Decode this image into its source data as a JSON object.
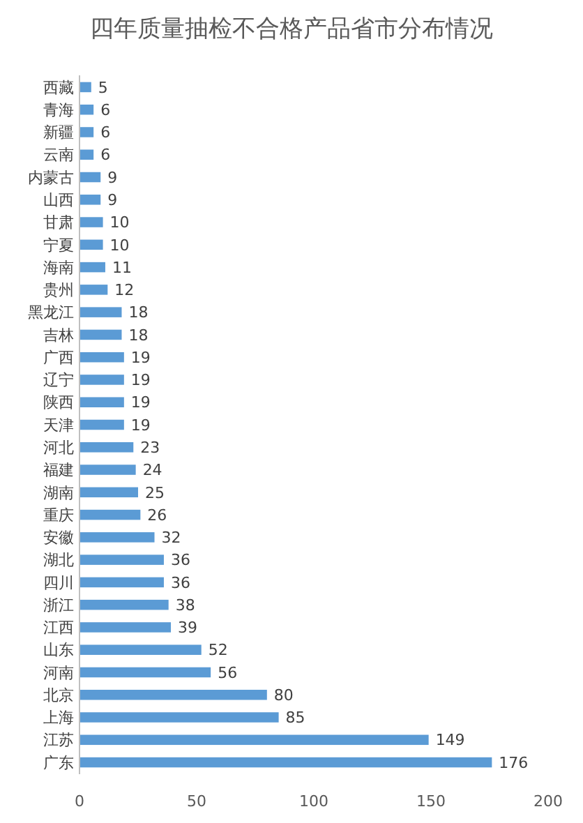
{
  "chart_data": {
    "type": "bar",
    "orientation": "horizontal",
    "title": "四年质量抽检不合格产品省市分布情况",
    "categories": [
      "西藏",
      "青海",
      "新疆",
      "云南",
      "内蒙古",
      "山西",
      "甘肃",
      "宁夏",
      "海南",
      "贵州",
      "黑龙江",
      "吉林",
      "广西",
      "辽宁",
      "陕西",
      "天津",
      "河北",
      "福建",
      "湖南",
      "重庆",
      "安徽",
      "湖北",
      "四川",
      "浙江",
      "江西",
      "山东",
      "河南",
      "北京",
      "上海",
      "江苏",
      "广东"
    ],
    "values": [
      5,
      6,
      6,
      6,
      9,
      9,
      10,
      10,
      11,
      12,
      18,
      18,
      19,
      19,
      19,
      19,
      23,
      24,
      25,
      26,
      32,
      36,
      36,
      38,
      39,
      52,
      56,
      80,
      85,
      149,
      176
    ],
    "color": "#5b9bd5",
    "data_labels": true,
    "xlim": [
      0,
      200
    ],
    "xticks": [
      0,
      50,
      100,
      150,
      200
    ]
  }
}
